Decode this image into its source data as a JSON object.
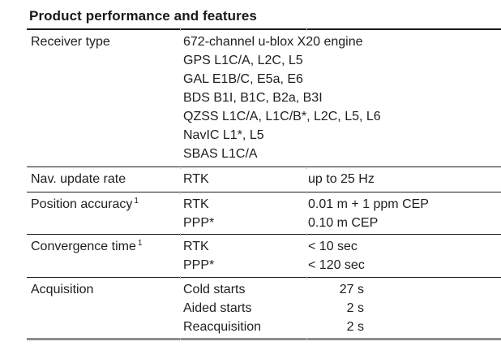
{
  "title": "Product performance and features",
  "table": {
    "rows": [
      {
        "label": "Receiver type",
        "lines": [
          "672-channel u-blox X20 engine",
          "GPS L1C/A, L2C, L5",
          "GAL E1B/C, E5a, E6",
          "BDS B1I, B1C, B2a, B3I",
          "QZSS L1C/A, L1C/B*, L2C, L5, L6",
          "NavIC L1*, L5",
          "SBAS L1C/A"
        ]
      },
      {
        "label": "Nav. update rate",
        "params": [
          "RTK"
        ],
        "values": [
          "up to 25 Hz"
        ]
      },
      {
        "label": "Position accuracy",
        "sup": "1",
        "params": [
          "RTK",
          "PPP*"
        ],
        "values": [
          "0.01 m + 1 ppm CEP",
          "0.10 m CEP"
        ]
      },
      {
        "label": "Convergence time",
        "sup": "1",
        "params": [
          "RTK",
          "PPP*"
        ],
        "values": [
          "< 10 sec",
          "< 120 sec"
        ]
      },
      {
        "label": "Acquisition",
        "params": [
          "Cold starts",
          "Aided starts",
          "Reacquisition"
        ],
        "values": [
          "27 s",
          "2 s",
          "2 s"
        ]
      }
    ]
  },
  "colors": {
    "text": "#1e1e1e",
    "rule": "#1c1c1c",
    "bottom_rule": "#8d8d8d",
    "background": "#ffffff"
  }
}
